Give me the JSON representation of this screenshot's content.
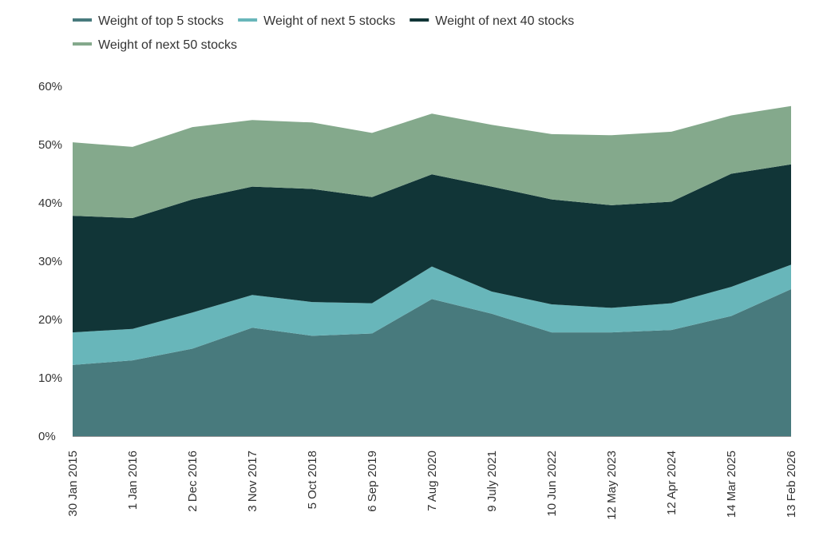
{
  "chart_data": {
    "type": "area",
    "stacked": true,
    "title": "",
    "xlabel": "",
    "ylabel": "",
    "ylim": [
      0,
      60
    ],
    "y_ticks": [
      "0%",
      "10%",
      "20%",
      "30%",
      "40%",
      "50%",
      "60%"
    ],
    "x_tick_labels": [
      "30 Jan 2015",
      "1 Jan 2016",
      "2 Dec 2016",
      "3 Nov 2017",
      "5 Oct 2018",
      "6 Sep 2019",
      "7 Aug 2020",
      "9 July 2021",
      "10 Jun 2022",
      "12 May 2023",
      "12 Apr 2024",
      "14 Mar 2025",
      "13 Feb 2026"
    ],
    "x": [
      "30 Jan 2015",
      "1 Jan 2016",
      "2 Dec 2016",
      "3 Nov 2017",
      "5 Oct 2018",
      "6 Sep 2019",
      "7 Aug 2020",
      "9 July 2021",
      "10 Jun 2022",
      "12 May 2023",
      "12 Apr 2024",
      "14 Mar 2025",
      "13 Feb 2026"
    ],
    "grid": false,
    "legend_position": "top-left",
    "series": [
      {
        "name": "Weight of top 5 stocks",
        "color": "#487a7d",
        "values": [
          12.2,
          13.0,
          15.0,
          18.6,
          17.2,
          17.6,
          23.5,
          21.0,
          17.8,
          17.8,
          18.2,
          20.6,
          25.2
        ]
      },
      {
        "name": "Weight of next 5 stocks",
        "color": "#68b6ba",
        "values": [
          5.6,
          5.4,
          6.2,
          5.6,
          5.8,
          5.2,
          5.6,
          3.8,
          4.8,
          4.2,
          4.6,
          5.0,
          4.2
        ]
      },
      {
        "name": "Weight of next 40 stocks",
        "color": "#113537",
        "values": [
          20.0,
          19.0,
          19.4,
          18.6,
          19.4,
          18.2,
          15.8,
          18.0,
          18.0,
          17.6,
          17.4,
          19.4,
          17.2
        ]
      },
      {
        "name": "Weight of next 50 stocks",
        "color": "#84a98c",
        "values": [
          12.6,
          12.2,
          12.4,
          11.4,
          11.4,
          11.0,
          10.4,
          10.6,
          11.2,
          12.0,
          12.0,
          10.0,
          10.0
        ]
      }
    ]
  }
}
